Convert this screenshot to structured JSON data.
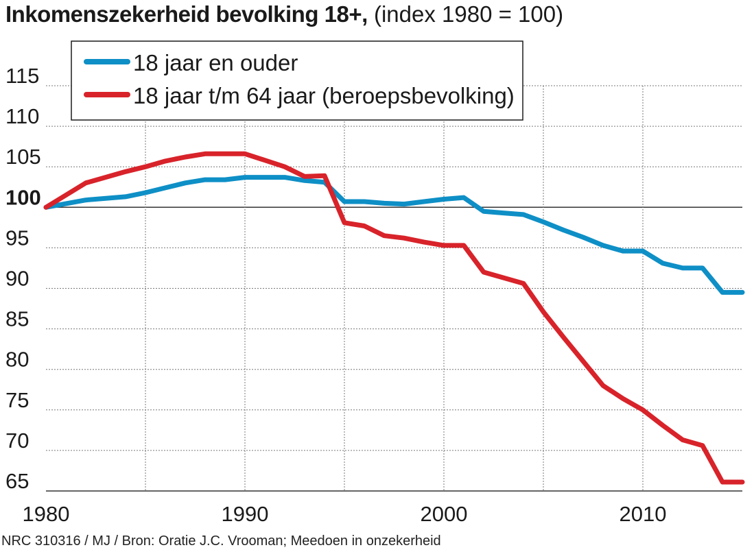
{
  "title": {
    "main": "Inkomenszekerheid bevolking 18+,",
    "sub": "(index 1980 = 100)"
  },
  "credit": "NRC 310316 / MJ / Bron: Oratie J.C. Vrooman; Meedoen in onzekerheid",
  "colors": {
    "blue": "#0e8fc6",
    "red": "#d8232a",
    "grid": "#777777",
    "baseline": "#333333"
  },
  "chart_data": {
    "type": "line",
    "title": "Inkomenszekerheid bevolking 18+, (index 1980 = 100)",
    "xlim": [
      1980,
      2015
    ],
    "ylim": [
      65,
      115
    ],
    "x_ticks": [
      "1980",
      "1990",
      "2000",
      "2010"
    ],
    "y_ticks": [
      "115",
      "110",
      "105",
      "100",
      "95",
      "90",
      "85",
      "80",
      "75",
      "70",
      "65"
    ],
    "baseline": 100,
    "legend_position": "top-left",
    "series": [
      {
        "name": "18 jaar en ouder",
        "color": "#0e8fc6",
        "x": [
          1980,
          1982,
          1984,
          1985,
          1986,
          1987,
          1988,
          1989,
          1990,
          1991,
          1992,
          1993,
          1994,
          1995,
          1996,
          1997,
          1998,
          1999,
          2000,
          2001,
          2002,
          2003,
          2004,
          2005,
          2006,
          2007,
          2008,
          2009,
          2010,
          2011,
          2012,
          2013,
          2014,
          2015
        ],
        "y": [
          100,
          100.9,
          101.3,
          101.8,
          102.4,
          103.0,
          103.4,
          103.4,
          103.7,
          103.7,
          103.7,
          103.3,
          103.1,
          100.7,
          100.7,
          100.5,
          100.4,
          100.7,
          101.0,
          101.2,
          99.5,
          99.3,
          99.1,
          98.2,
          97.2,
          96.3,
          95.3,
          94.6,
          94.6,
          93.1,
          92.5,
          92.5,
          89.5,
          89.5
        ]
      },
      {
        "name": "18 jaar t/m 64 jaar (beroepsbevolking)",
        "color": "#d8232a",
        "x": [
          1980,
          1982,
          1984,
          1985,
          1986,
          1987,
          1988,
          1989,
          1990,
          1991,
          1992,
          1993,
          1994,
          1995,
          1996,
          1997,
          1998,
          1999,
          2000,
          2001,
          2002,
          2003,
          2004,
          2005,
          2006,
          2007,
          2008,
          2009,
          2010,
          2011,
          2012,
          2013,
          2014,
          2015
        ],
        "y": [
          100,
          103.0,
          104.4,
          105.0,
          105.7,
          106.2,
          106.6,
          106.6,
          106.6,
          105.8,
          105.0,
          103.8,
          103.9,
          98.1,
          97.7,
          96.5,
          96.2,
          95.7,
          95.3,
          95.3,
          92.0,
          91.3,
          90.6,
          87.1,
          84.0,
          81.0,
          78.0,
          76.4,
          75.0,
          73.1,
          71.3,
          70.6,
          66.1,
          66.1
        ]
      }
    ]
  }
}
